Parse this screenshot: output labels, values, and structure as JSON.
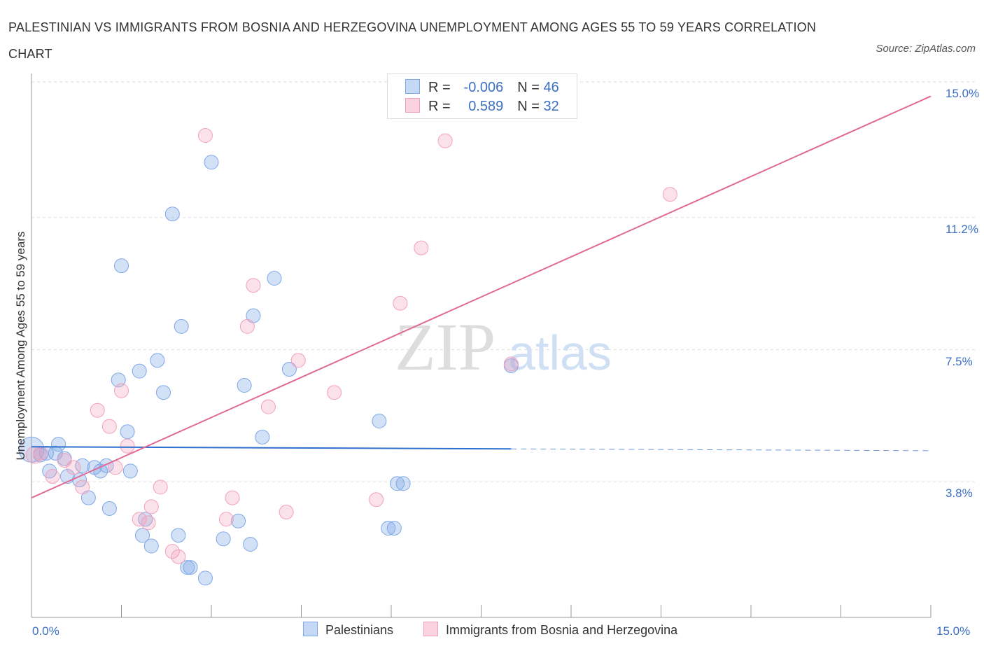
{
  "chart_data": {
    "type": "scatter",
    "title": "PALESTINIAN VS IMMIGRANTS FROM BOSNIA AND HERZEGOVINA UNEMPLOYMENT AMONG AGES 55 TO 59 YEARS CORRELATION CHART",
    "source": "Source: ZipAtlas.com",
    "ylabel": "Unemployment Among Ages 55 to 59 years",
    "xlim": [
      0,
      15
    ],
    "ylim": [
      0.0,
      15.0
    ],
    "x_ticks": [
      "0.0%",
      "15.0%"
    ],
    "y_ticks": [
      {
        "value": 15.0,
        "label": "15.0%"
      },
      {
        "value": 11.2,
        "label": "11.2%"
      },
      {
        "value": 7.5,
        "label": "7.5%"
      },
      {
        "value": 3.8,
        "label": "3.8%"
      }
    ],
    "grid": true,
    "watermark": "ZIPatlas",
    "legend": [
      {
        "name": "Palestinians",
        "color": "#7fa8e6",
        "r_label": "R =",
        "r": "-0.006",
        "n_label": "N =",
        "n": "46"
      },
      {
        "name": "Immigrants from Bosnia and Herzegovina",
        "color": "#f2a0bb",
        "r_label": "R =",
        "r": "0.589",
        "n_label": "N =",
        "n": "32"
      }
    ],
    "series": [
      {
        "name": "Palestinians",
        "color": "#7fa8e6",
        "trend": {
          "x0": 0.0,
          "y0": 4.78,
          "x1": 8.0,
          "y1": 4.72,
          "dash_to": 15.0,
          "y_end": 4.67,
          "color": "#2f6fd0"
        },
        "points": [
          [
            0.0,
            4.7,
            18
          ],
          [
            0.15,
            4.55,
            10
          ],
          [
            0.25,
            4.6,
            10
          ],
          [
            0.3,
            4.1,
            10
          ],
          [
            0.4,
            4.6,
            10
          ],
          [
            0.45,
            4.85,
            10
          ],
          [
            0.55,
            4.45,
            10
          ],
          [
            0.6,
            3.95,
            10
          ],
          [
            0.8,
            3.85,
            10
          ],
          [
            0.85,
            4.25,
            10
          ],
          [
            0.95,
            3.35,
            10
          ],
          [
            1.05,
            4.2,
            10
          ],
          [
            1.15,
            4.1,
            10
          ],
          [
            1.25,
            4.25,
            10
          ],
          [
            1.3,
            3.05,
            10
          ],
          [
            1.45,
            6.65,
            10
          ],
          [
            1.5,
            9.85,
            10
          ],
          [
            1.6,
            5.2,
            10
          ],
          [
            1.65,
            4.1,
            10
          ],
          [
            1.8,
            6.9,
            10
          ],
          [
            1.85,
            2.3,
            10
          ],
          [
            1.9,
            2.75,
            10
          ],
          [
            2.0,
            2.0,
            10
          ],
          [
            2.1,
            7.2,
            10
          ],
          [
            2.2,
            6.3,
            10
          ],
          [
            2.35,
            11.3,
            10
          ],
          [
            2.45,
            2.3,
            10
          ],
          [
            2.5,
            8.15,
            10
          ],
          [
            2.6,
            1.4,
            10
          ],
          [
            2.65,
            1.4,
            10
          ],
          [
            2.9,
            1.1,
            10
          ],
          [
            3.0,
            12.75,
            10
          ],
          [
            3.2,
            2.2,
            10
          ],
          [
            3.45,
            2.7,
            10
          ],
          [
            3.55,
            6.5,
            10
          ],
          [
            3.65,
            2.05,
            10
          ],
          [
            3.7,
            8.45,
            10
          ],
          [
            3.85,
            5.05,
            10
          ],
          [
            4.05,
            9.5,
            10
          ],
          [
            4.3,
            6.95,
            10
          ],
          [
            5.8,
            5.5,
            10
          ],
          [
            5.95,
            2.5,
            10
          ],
          [
            6.05,
            2.5,
            10
          ],
          [
            6.1,
            3.75,
            10
          ],
          [
            6.2,
            3.75,
            10
          ],
          [
            8.0,
            7.05,
            10
          ]
        ]
      },
      {
        "name": "Immigrants from Bosnia and Herzegovina",
        "color": "#f2a0bb",
        "trend": {
          "x0": 0.0,
          "y0": 3.35,
          "x1": 15.0,
          "y1": 14.6,
          "color": "#e06a94"
        },
        "points": [
          [
            0.05,
            4.55,
            12
          ],
          [
            0.15,
            4.6,
            10
          ],
          [
            0.35,
            3.95,
            10
          ],
          [
            0.55,
            4.4,
            10
          ],
          [
            0.7,
            4.2,
            10
          ],
          [
            0.85,
            3.65,
            10
          ],
          [
            1.1,
            5.8,
            10
          ],
          [
            1.3,
            5.35,
            10
          ],
          [
            1.4,
            4.2,
            10
          ],
          [
            1.5,
            6.35,
            10
          ],
          [
            1.6,
            4.8,
            10
          ],
          [
            1.8,
            2.75,
            10
          ],
          [
            1.95,
            2.65,
            10
          ],
          [
            2.0,
            3.1,
            10
          ],
          [
            2.15,
            3.65,
            10
          ],
          [
            2.35,
            1.85,
            10
          ],
          [
            2.45,
            1.7,
            10
          ],
          [
            2.9,
            13.5,
            10
          ],
          [
            3.25,
            2.75,
            10
          ],
          [
            3.35,
            3.35,
            10
          ],
          [
            3.6,
            8.15,
            10
          ],
          [
            3.7,
            9.3,
            10
          ],
          [
            3.95,
            5.9,
            10
          ],
          [
            4.25,
            2.95,
            10
          ],
          [
            4.45,
            7.2,
            10
          ],
          [
            5.05,
            6.3,
            10
          ],
          [
            5.75,
            3.3,
            10
          ],
          [
            6.15,
            8.8,
            10
          ],
          [
            6.5,
            10.35,
            10
          ],
          [
            6.9,
            13.35,
            10
          ],
          [
            8.0,
            7.1,
            10
          ],
          [
            10.65,
            11.85,
            10
          ]
        ]
      }
    ]
  }
}
